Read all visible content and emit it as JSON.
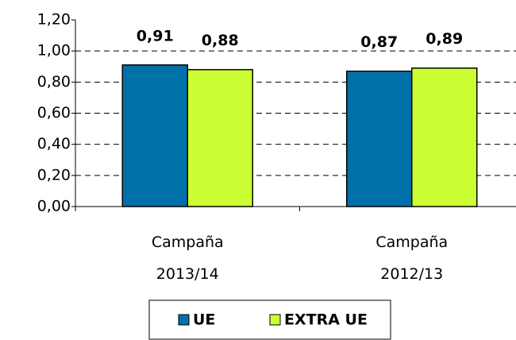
{
  "chart_data": {
    "type": "bar",
    "categories": [
      "Campaña 2013/14",
      "Campaña 2012/13"
    ],
    "series": [
      {
        "name": "UE",
        "color": "#0070a8",
        "values": [
          0.91,
          0.87
        ],
        "value_labels": [
          "0,91",
          "0,87"
        ]
      },
      {
        "name": "EXTRA UE",
        "color": "#ccff33",
        "values": [
          0.88,
          0.89
        ],
        "value_labels": [
          "0,88",
          "0,89"
        ]
      }
    ],
    "ylim": [
      0,
      1.2
    ],
    "yticks": [
      {
        "value": 0,
        "label": "0,00"
      },
      {
        "value": 0.2,
        "label": "0,20"
      },
      {
        "value": 0.4,
        "label": "0,40"
      },
      {
        "value": 0.6,
        "label": "0,60"
      },
      {
        "value": 0.8,
        "label": "0,80"
      },
      {
        "value": 1.0,
        "label": "1,00"
      },
      {
        "value": 1.2,
        "label": "1,20"
      }
    ],
    "grid": true,
    "legend": "bottom"
  }
}
